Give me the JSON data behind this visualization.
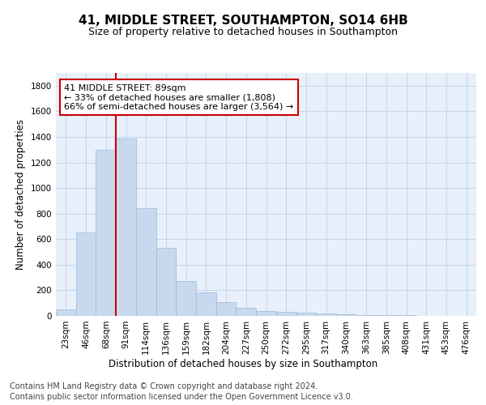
{
  "title_line1": "41, MIDDLE STREET, SOUTHAMPTON, SO14 6HB",
  "title_line2": "Size of property relative to detached houses in Southampton",
  "xlabel": "Distribution of detached houses by size in Southampton",
  "ylabel": "Number of detached properties",
  "categories": [
    "23sqm",
    "46sqm",
    "68sqm",
    "91sqm",
    "114sqm",
    "136sqm",
    "159sqm",
    "182sqm",
    "204sqm",
    "227sqm",
    "250sqm",
    "272sqm",
    "295sqm",
    "317sqm",
    "340sqm",
    "363sqm",
    "385sqm",
    "408sqm",
    "431sqm",
    "453sqm",
    "476sqm"
  ],
  "values": [
    50,
    650,
    1300,
    1390,
    840,
    530,
    270,
    185,
    105,
    65,
    35,
    30,
    25,
    20,
    10,
    8,
    5,
    5,
    3,
    2,
    2
  ],
  "bar_color": "#c8d9ef",
  "bar_edge_color": "#9bbad8",
  "grid_color": "#c8d4e8",
  "vline_color": "#cc0000",
  "annotation_line1": "41 MIDDLE STREET: 89sqm",
  "annotation_line2": "← 33% of detached houses are smaller (1,808)",
  "annotation_line3": "66% of semi-detached houses are larger (3,564) →",
  "annotation_box_color": "#cc0000",
  "ylim": [
    0,
    1900
  ],
  "yticks": [
    0,
    200,
    400,
    600,
    800,
    1000,
    1200,
    1400,
    1600,
    1800
  ],
  "footer_line1": "Contains HM Land Registry data © Crown copyright and database right 2024.",
  "footer_line2": "Contains public sector information licensed under the Open Government Licence v3.0.",
  "title_fontsize": 11,
  "subtitle_fontsize": 9,
  "axis_label_fontsize": 8.5,
  "tick_fontsize": 7.5,
  "annotation_fontsize": 8,
  "footer_fontsize": 7,
  "background_color": "#ffffff",
  "plot_bg_color": "#e8f0fb"
}
